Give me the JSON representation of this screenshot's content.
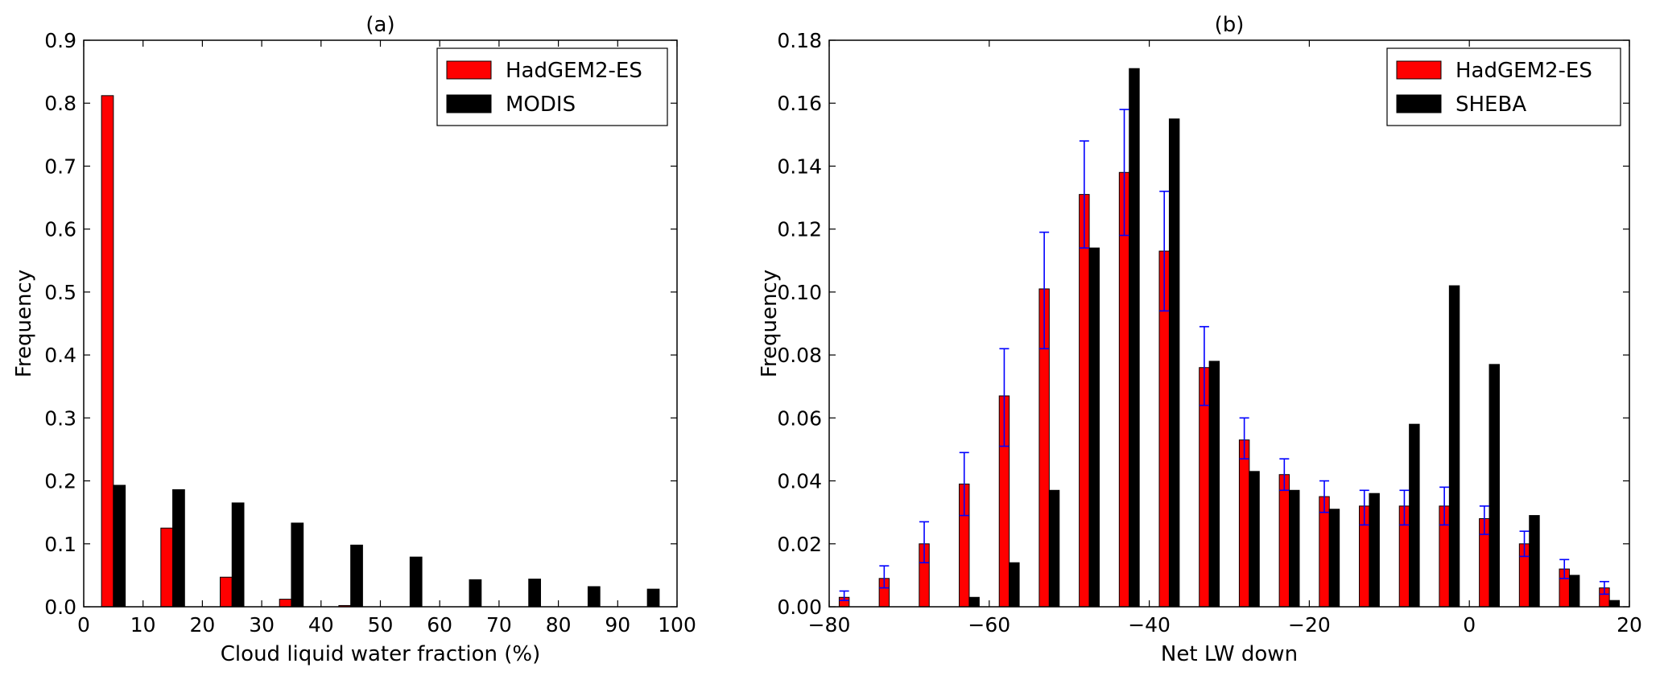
{
  "colors": {
    "model": "#ff0000",
    "observation": "#000000",
    "error_bar": "#0000ff"
  },
  "chart_data": [
    {
      "type": "bar",
      "title": "(a)",
      "xlabel": "Cloud liquid water fraction (%)",
      "ylabel": "Frequency",
      "xlim": [
        0,
        100
      ],
      "ylim": [
        0,
        0.9
      ],
      "xticks": [
        0,
        10,
        20,
        30,
        40,
        50,
        60,
        70,
        80,
        90,
        100
      ],
      "yticks": [
        0.0,
        0.1,
        0.2,
        0.3,
        0.4,
        0.5,
        0.6,
        0.7,
        0.8,
        0.9
      ],
      "xtick_labels": [
        "0",
        "10",
        "20",
        "30",
        "40",
        "50",
        "60",
        "70",
        "80",
        "90",
        "100"
      ],
      "ytick_labels": [
        "0.0",
        "0.1",
        "0.2",
        "0.3",
        "0.4",
        "0.5",
        "0.6",
        "0.7",
        "0.8",
        "0.9"
      ],
      "bin_centers": [
        5,
        15,
        25,
        35,
        45,
        55,
        65,
        75,
        85,
        95
      ],
      "bar_width": 2,
      "legend": {
        "location": "top-right"
      },
      "series": [
        {
          "name": "HadGEM2-ES",
          "color": "#ff0000",
          "values": [
            0.812,
            0.125,
            0.047,
            0.012,
            0.002,
            0.0,
            0.0,
            0.0,
            0.0,
            0.0
          ]
        },
        {
          "name": "MODIS",
          "color": "#000000",
          "values": [
            0.193,
            0.186,
            0.165,
            0.133,
            0.098,
            0.079,
            0.043,
            0.044,
            0.032,
            0.028
          ]
        }
      ]
    },
    {
      "type": "bar",
      "title": "(b)",
      "xlabel": "Net LW down",
      "ylabel": "Frequency",
      "xlim": [
        -80,
        20
      ],
      "ylim": [
        0,
        0.18
      ],
      "xticks": [
        -80,
        -60,
        -40,
        -20,
        0,
        20
      ],
      "yticks": [
        0.0,
        0.02,
        0.04,
        0.06,
        0.08,
        0.1,
        0.12,
        0.14,
        0.16,
        0.18
      ],
      "xtick_labels": [
        "−80",
        "−60",
        "−40",
        "−20",
        "0",
        "20"
      ],
      "ytick_labels": [
        "0.00",
        "0.02",
        "0.04",
        "0.06",
        "0.08",
        "0.10",
        "0.12",
        "0.14",
        "0.16",
        "0.18"
      ],
      "bin_centers": [
        -77.5,
        -72.5,
        -67.5,
        -62.5,
        -57.5,
        -52.5,
        -47.5,
        -42.5,
        -37.5,
        -32.5,
        -27.5,
        -22.5,
        -17.5,
        -12.5,
        -7.5,
        -2.5,
        2.5,
        7.5,
        12.5,
        17.5
      ],
      "bar_width": 1.25,
      "legend": {
        "location": "top-right"
      },
      "series": [
        {
          "name": "HadGEM2-ES",
          "color": "#ff0000",
          "values": [
            0.003,
            0.009,
            0.02,
            0.039,
            0.067,
            0.101,
            0.131,
            0.138,
            0.113,
            0.076,
            0.053,
            0.042,
            0.035,
            0.032,
            0.032,
            0.032,
            0.028,
            0.02,
            0.012,
            0.006
          ],
          "error_low": [
            0.002,
            0.006,
            0.014,
            0.029,
            0.051,
            0.082,
            0.114,
            0.118,
            0.094,
            0.064,
            0.047,
            0.037,
            0.03,
            0.026,
            0.026,
            0.026,
            0.023,
            0.016,
            0.009,
            0.004
          ],
          "error_high": [
            0.005,
            0.013,
            0.027,
            0.049,
            0.082,
            0.119,
            0.148,
            0.158,
            0.132,
            0.089,
            0.06,
            0.047,
            0.04,
            0.037,
            0.037,
            0.038,
            0.032,
            0.024,
            0.015,
            0.008
          ]
        },
        {
          "name": "SHEBA",
          "color": "#000000",
          "values": [
            0.0,
            0.0,
            0.0,
            0.003,
            0.014,
            0.037,
            0.114,
            0.171,
            0.155,
            0.078,
            0.043,
            0.037,
            0.031,
            0.036,
            0.058,
            0.102,
            0.077,
            0.029,
            0.01,
            0.002
          ]
        }
      ]
    }
  ]
}
